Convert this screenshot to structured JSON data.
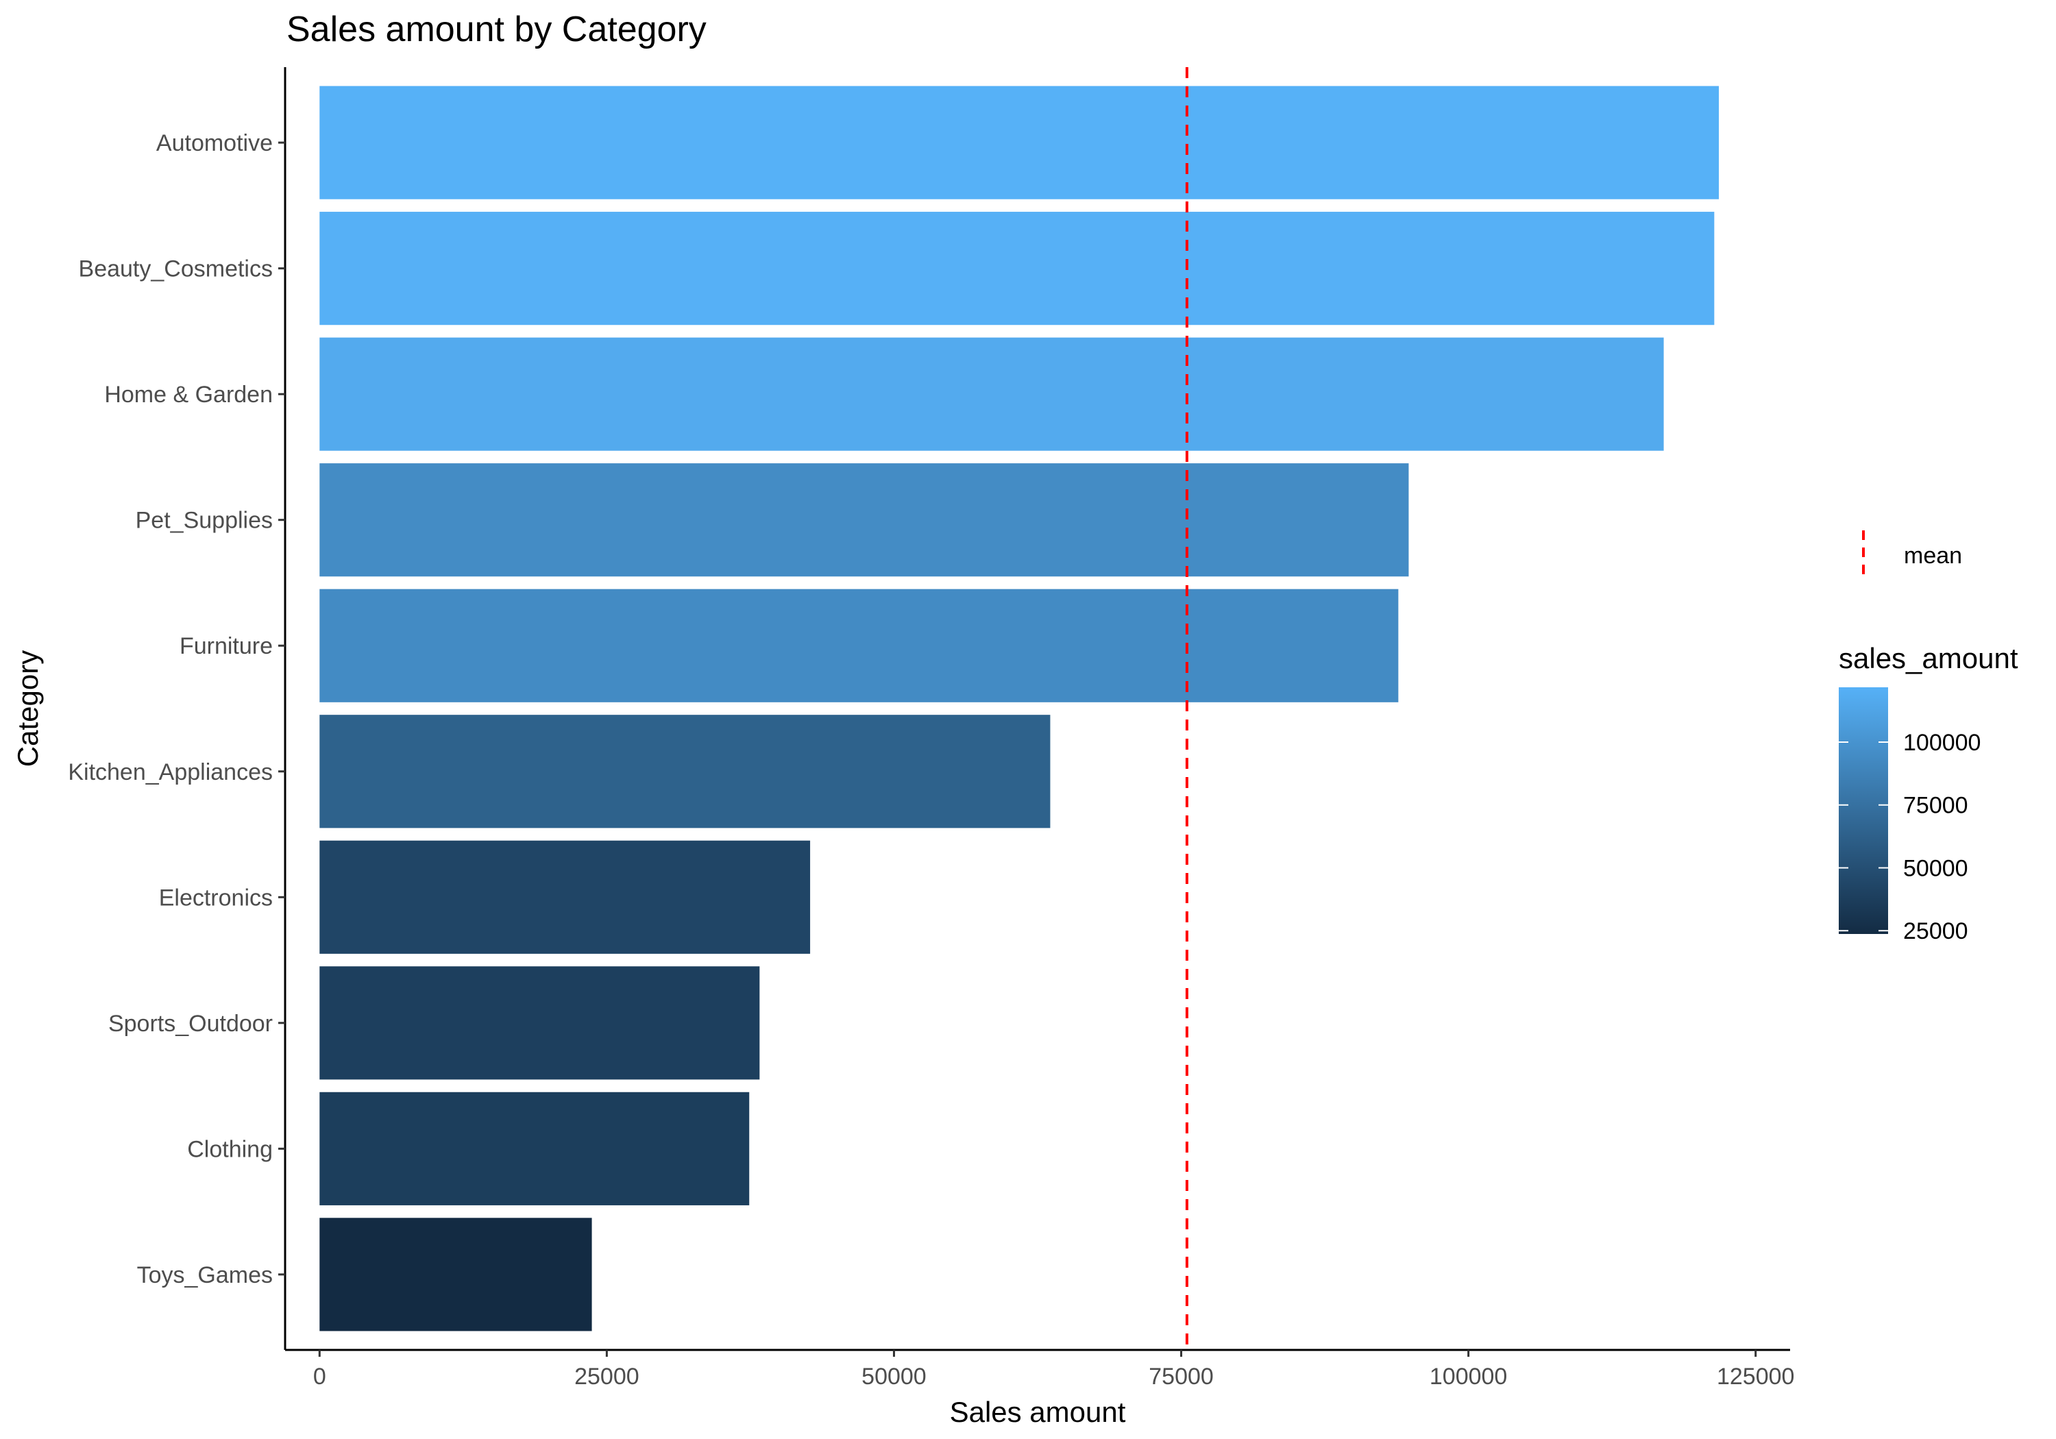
{
  "chart_data": {
    "type": "bar",
    "orientation": "horizontal",
    "title": "Sales amount by Category",
    "xlabel": "Sales amount",
    "ylabel": "Category",
    "categories": [
      "Automotive",
      "Beauty_Cosmetics",
      "Home & Garden",
      "Pet_Supplies",
      "Furniture",
      "Kitchen_Appliances",
      "Electronics",
      "Sports_Outdoor",
      "Clothing",
      "Toys_Games"
    ],
    "values": [
      121800,
      121400,
      117000,
      94800,
      93900,
      63600,
      42700,
      38300,
      37400,
      23700
    ],
    "xlim": [
      -3000,
      128000
    ],
    "xticks": [
      0,
      25000,
      50000,
      75000,
      100000,
      125000
    ],
    "xtick_labels": [
      "0",
      "25000",
      "50000",
      "75000",
      "100000",
      "125000"
    ],
    "mean_line": {
      "value": 75500,
      "label": "mean",
      "color": "#ff0000"
    },
    "color_scale": {
      "title": "sales_amount",
      "low_color": "#132B43",
      "high_color": "#56B1F7",
      "min": 23700,
      "max": 121800,
      "ticks": [
        25000,
        50000,
        75000,
        100000
      ],
      "tick_labels": [
        "25000",
        "50000",
        "75000",
        "100000"
      ]
    },
    "grid": false,
    "legend_position": "right"
  }
}
